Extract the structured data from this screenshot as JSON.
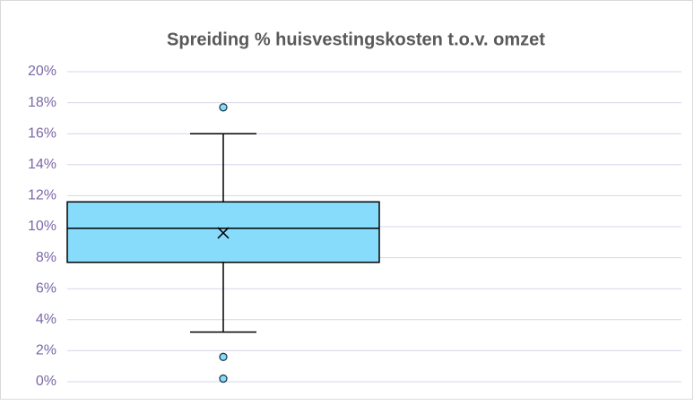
{
  "chart_data": {
    "type": "box",
    "title": "Spreiding % huisvestingskosten t.o.v. omzet",
    "ylim": [
      0,
      20
    ],
    "yticks": [
      {
        "value": 0,
        "label": "0%"
      },
      {
        "value": 2,
        "label": "2%"
      },
      {
        "value": 4,
        "label": "4%"
      },
      {
        "value": 6,
        "label": "6%"
      },
      {
        "value": 8,
        "label": "8%"
      },
      {
        "value": 10,
        "label": "10%"
      },
      {
        "value": 12,
        "label": "12%"
      },
      {
        "value": 14,
        "label": "14%"
      },
      {
        "value": 16,
        "label": "16%"
      },
      {
        "value": 18,
        "label": "18%"
      },
      {
        "value": 20,
        "label": "20%"
      }
    ],
    "grid": true,
    "boxes": [
      {
        "whisker_low": 3.2,
        "q1": 7.7,
        "median": 9.9,
        "q3": 11.6,
        "whisker_high": 16.0,
        "mean": 9.6,
        "outliers": [
          17.7,
          1.6,
          0.2
        ],
        "color": "#87dcfb"
      }
    ]
  }
}
